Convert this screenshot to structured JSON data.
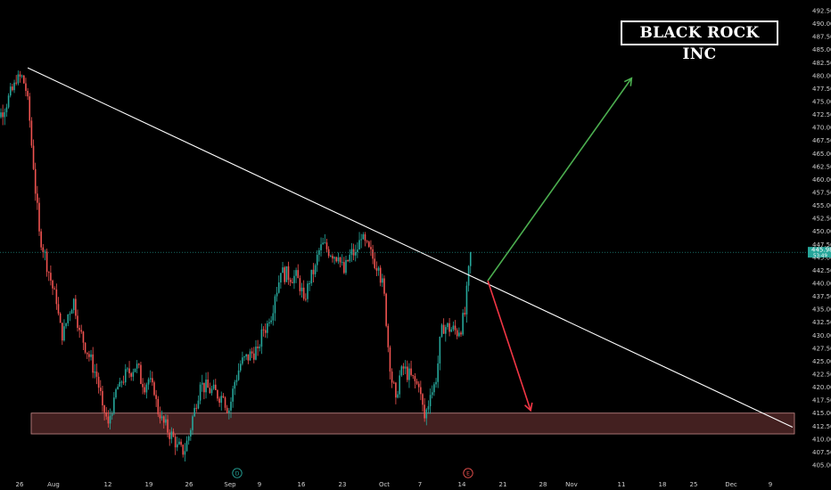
{
  "title": "BLACK ROCK INC",
  "colors": {
    "background": "#000000",
    "up": "#26a69a",
    "down": "#ef5350",
    "trendline": "#ffffff",
    "support_zone": "#7a3a3a",
    "arrow_up": "#4caf50",
    "arrow_down": "#f23645",
    "price_badge": "#26a69a"
  },
  "chart_data": {
    "type": "candlestick",
    "y_axis_ticks": [
      405.0,
      407.5,
      410.0,
      412.5,
      415.0,
      417.5,
      420.0,
      422.5,
      425.0,
      427.5,
      430.0,
      432.5,
      435.0,
      437.5,
      440.0,
      442.5,
      445.0,
      447.5,
      450.0,
      452.5,
      455.0,
      457.5,
      460.0,
      462.5,
      465.0,
      467.5,
      470.0,
      472.5,
      475.0,
      477.5,
      480.0,
      482.5,
      485.0,
      487.5,
      490.0,
      492.5
    ],
    "ylim": [
      404.0,
      493.0
    ],
    "x_axis_ticks": [
      "26",
      "Aug",
      "12",
      "19",
      "26",
      "Sep",
      "9",
      "16",
      "23",
      "Oct",
      "7",
      "14",
      "21",
      "28",
      "Nov",
      "11",
      "18",
      "25",
      "Dec",
      "9"
    ],
    "current_price": "445.98",
    "current_price_sub": "53:49",
    "event_markers": [
      "D",
      "E"
    ],
    "support_zone": [
      411.0,
      415.0
    ],
    "trendline": {
      "start": {
        "date": "Jul 31",
        "price": 481.5
      },
      "end": {
        "date": "Dec 11",
        "price": 412.3
      }
    },
    "projection_up": {
      "from": 440.5,
      "to": 479.5
    },
    "projection_down": {
      "from": 440.5,
      "to": 415.5
    },
    "price_path": [
      [
        "Jul 24",
        479.0
      ],
      [
        "Jul 25",
        481.5
      ],
      [
        "Jul 26",
        472.0
      ],
      [
        "Jul 29",
        478.5
      ],
      [
        "Jul 30",
        480.0
      ],
      [
        "Jul 31",
        476.0
      ],
      [
        "Aug 1",
        462.0
      ],
      [
        "Aug 2",
        450.0
      ],
      [
        "Aug 5",
        436.0
      ],
      [
        "Aug 6",
        429.0
      ],
      [
        "Aug 7",
        434.0
      ],
      [
        "Aug 8",
        437.0
      ],
      [
        "Aug 9",
        431.0
      ],
      [
        "Aug 12",
        422.0
      ],
      [
        "Aug 13",
        416.5
      ],
      [
        "Aug 14",
        413.0
      ],
      [
        "Aug 15",
        418.0
      ],
      [
        "Aug 16",
        421.0
      ],
      [
        "Aug 19",
        424.5
      ],
      [
        "Aug 20",
        420.0
      ],
      [
        "Aug 21",
        421.5
      ],
      [
        "Aug 22",
        418.5
      ],
      [
        "Aug 23",
        414.0
      ],
      [
        "Aug 26",
        409.0
      ],
      [
        "Aug 27",
        407.0
      ],
      [
        "Aug 28",
        410.5
      ],
      [
        "Aug 29",
        416.0
      ],
      [
        "Aug 30",
        420.5
      ],
      [
        "Sep 3",
        418.0
      ],
      [
        "Sep 4",
        415.5
      ],
      [
        "Sep 5",
        421.0
      ],
      [
        "Sep 6",
        424.5
      ],
      [
        "Sep 9",
        427.5
      ],
      [
        "Sep 10",
        431.0
      ],
      [
        "Sep 11",
        432.5
      ],
      [
        "Sep 12",
        437.5
      ],
      [
        "Sep 13",
        442.0
      ],
      [
        "Sep 16",
        441.0
      ],
      [
        "Sep 17",
        437.0
      ],
      [
        "Sep 18",
        440.0
      ],
      [
        "Sep 19",
        443.5
      ],
      [
        "Sep 20",
        447.5
      ],
      [
        "Sep 23",
        445.0
      ],
      [
        "Sep 24",
        442.0
      ],
      [
        "Sep 25",
        445.5
      ],
      [
        "Sep 26",
        446.0
      ],
      [
        "Sep 27",
        448.5
      ],
      [
        "Sep 30",
        443.0
      ],
      [
        "Oct 1",
        438.0
      ],
      [
        "Oct 2",
        423.0
      ],
      [
        "Oct 3",
        418.0
      ],
      [
        "Oct 4",
        424.0
      ],
      [
        "Oct 7",
        420.0
      ],
      [
        "Oct 8",
        414.0
      ],
      [
        "Oct 9",
        418.5
      ],
      [
        "Oct 10",
        421.0
      ],
      [
        "Oct 11",
        432.0
      ],
      [
        "Oct 14",
        430.5
      ],
      [
        "Oct 15",
        434.0
      ],
      [
        "Oct 16",
        445.98
      ]
    ]
  }
}
